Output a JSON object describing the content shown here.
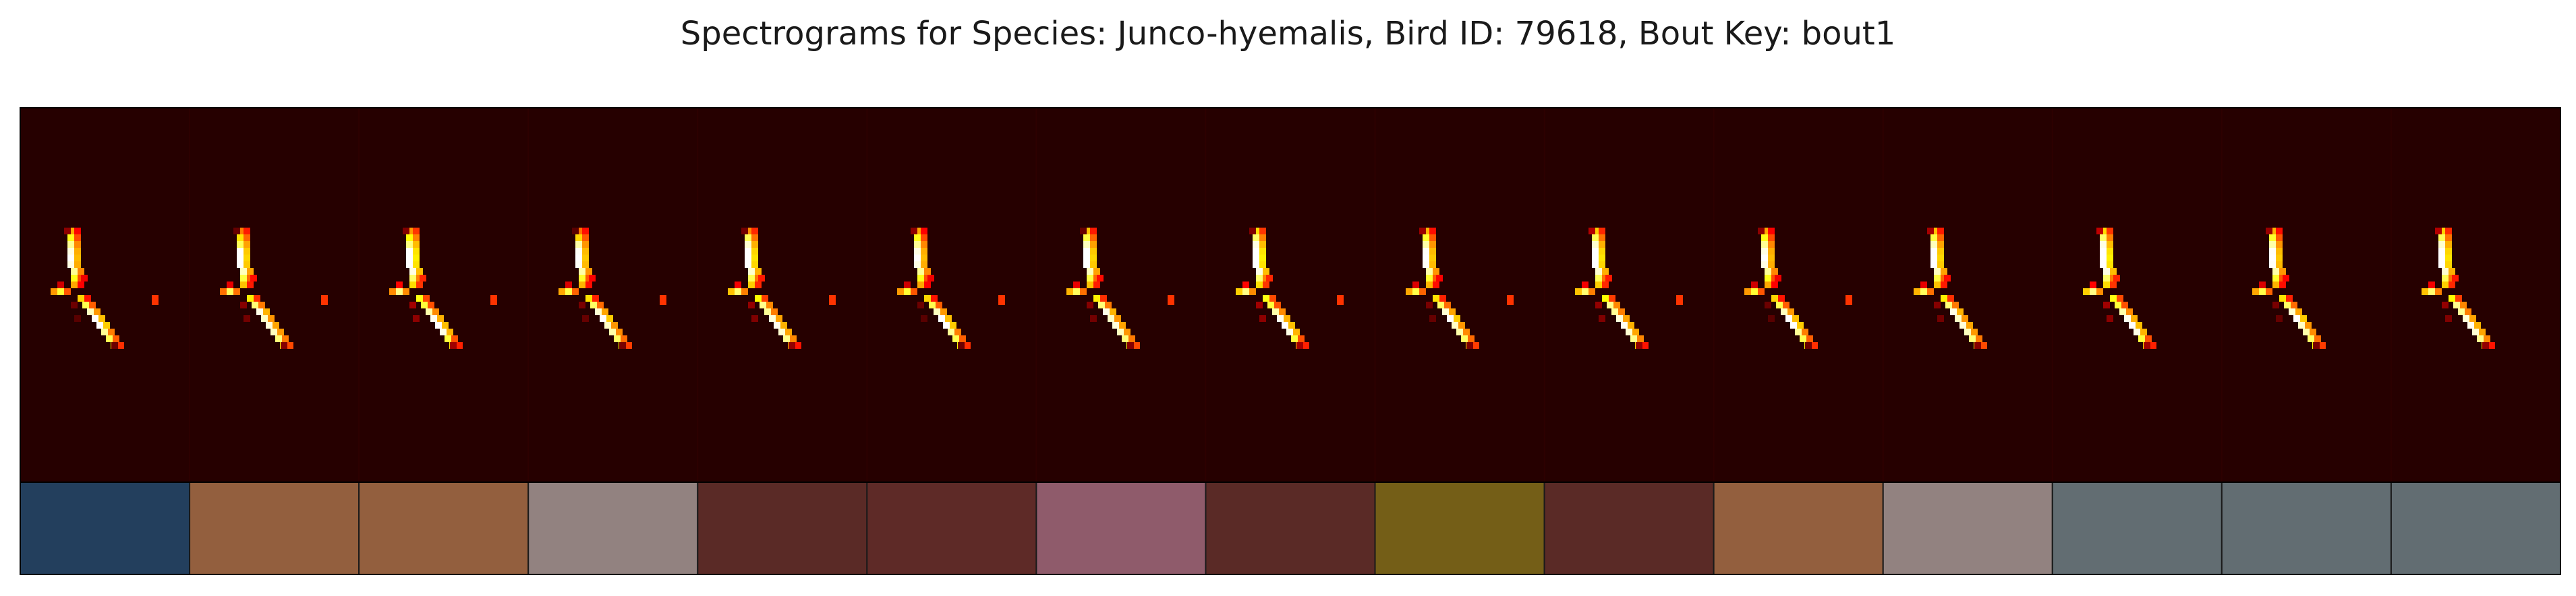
{
  "chart_data": {
    "type": "heatmap",
    "title": "Spectrograms for Species: Junco-hyemalis, Bird ID: 79618, Bout Key: bout1",
    "background_color": "#260000",
    "colormap": "hot",
    "syllable_count": 15,
    "label_colors": [
      "#233f5d",
      "#935f3e",
      "#935f3e",
      "#928280",
      "#5a2a26",
      "#5e2a27",
      "#8f5b6b",
      "#5a2a26",
      "#745e17",
      "#5a2a26",
      "#935f3e",
      "#928280",
      "#626d72",
      "#626d72",
      "#626d72"
    ],
    "isolated_dot_after_syllable": [
      true,
      true,
      true,
      true,
      true,
      true,
      true,
      true,
      true,
      true,
      true,
      false,
      false,
      false,
      false
    ]
  }
}
